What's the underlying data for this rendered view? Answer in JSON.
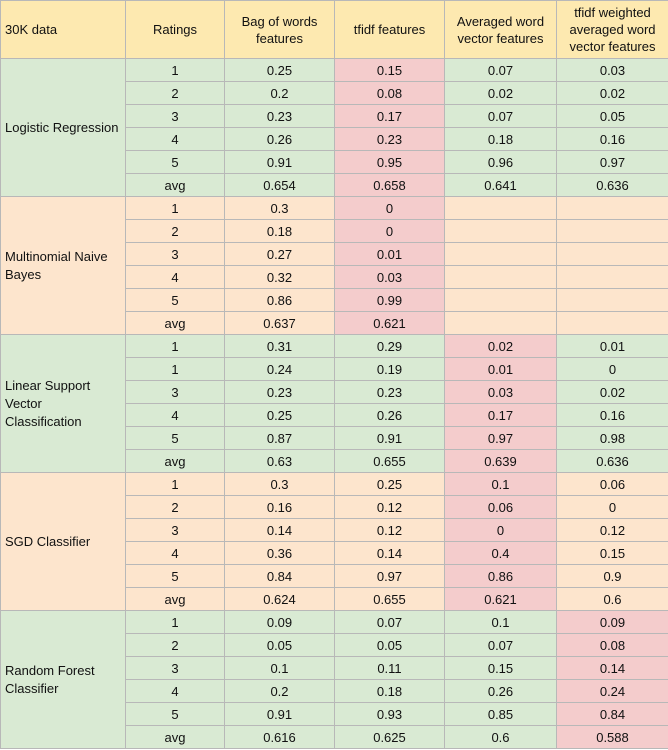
{
  "header": [
    "30K data",
    "Ratings",
    "Bag of words features",
    "tfidf features",
    "Averaged word vector features",
    "tfidf weighted averaged word vector features"
  ],
  "colors": {
    "header": "#fde9b0",
    "green": "#d9ead3",
    "orange": "#fde5cd",
    "highlight": "#f4cccc"
  },
  "groups": [
    {
      "model": "Logistic Regression",
      "color": "green",
      "highlight_col": 2,
      "rows": [
        [
          "1",
          "0.25",
          "0.15",
          "0.07",
          "0.03"
        ],
        [
          "2",
          "0.2",
          "0.08",
          "0.02",
          "0.02"
        ],
        [
          "3",
          "0.23",
          "0.17",
          "0.07",
          "0.05"
        ],
        [
          "4",
          "0.26",
          "0.23",
          "0.18",
          "0.16"
        ],
        [
          "5",
          "0.91",
          "0.95",
          "0.96",
          "0.97"
        ],
        [
          "avg",
          "0.654",
          "0.658",
          "0.641",
          "0.636"
        ]
      ]
    },
    {
      "model": "Multinomial Naive Bayes",
      "color": "orange",
      "highlight_col": 2,
      "rows": [
        [
          "1",
          "0.3",
          "0",
          "",
          ""
        ],
        [
          "2",
          "0.18",
          "0",
          "",
          ""
        ],
        [
          "3",
          "0.27",
          "0.01",
          "",
          ""
        ],
        [
          "4",
          "0.32",
          "0.03",
          "",
          ""
        ],
        [
          "5",
          "0.86",
          "0.99",
          "",
          ""
        ],
        [
          "avg",
          "0.637",
          "0.621",
          "",
          ""
        ]
      ]
    },
    {
      "model": "Linear Support Vector Classification",
      "color": "green",
      "highlight_col": 3,
      "rows": [
        [
          "1",
          "0.31",
          "0.29",
          "0.02",
          "0.01"
        ],
        [
          "1",
          "0.24",
          "0.19",
          "0.01",
          "0"
        ],
        [
          "3",
          "0.23",
          "0.23",
          "0.03",
          "0.02"
        ],
        [
          "4",
          "0.25",
          "0.26",
          "0.17",
          "0.16"
        ],
        [
          "5",
          "0.87",
          "0.91",
          "0.97",
          "0.98"
        ],
        [
          "avg",
          "0.63",
          "0.655",
          "0.639",
          "0.636"
        ]
      ]
    },
    {
      "model": "SGD Classifier",
      "color": "orange",
      "highlight_col": 3,
      "rows": [
        [
          "1",
          "0.3",
          "0.25",
          "0.1",
          "0.06"
        ],
        [
          "2",
          "0.16",
          "0.12",
          "0.06",
          "0"
        ],
        [
          "3",
          "0.14",
          "0.12",
          "0",
          "0.12"
        ],
        [
          "4",
          "0.36",
          "0.14",
          "0.4",
          "0.15"
        ],
        [
          "5",
          "0.84",
          "0.97",
          "0.86",
          "0.9"
        ],
        [
          "avg",
          "0.624",
          "0.655",
          "0.621",
          "0.6"
        ]
      ]
    },
    {
      "model": "Random Forest Classifier",
      "color": "green",
      "highlight_col": 4,
      "rows": [
        [
          "1",
          "0.09",
          "0.07",
          "0.1",
          "0.09"
        ],
        [
          "2",
          "0.05",
          "0.05",
          "0.07",
          "0.08"
        ],
        [
          "3",
          "0.1",
          "0.11",
          "0.15",
          "0.14"
        ],
        [
          "4",
          "0.2",
          "0.18",
          "0.26",
          "0.24"
        ],
        [
          "5",
          "0.91",
          "0.93",
          "0.85",
          "0.84"
        ],
        [
          "avg",
          "0.616",
          "0.625",
          "0.6",
          "0.588"
        ]
      ]
    }
  ]
}
